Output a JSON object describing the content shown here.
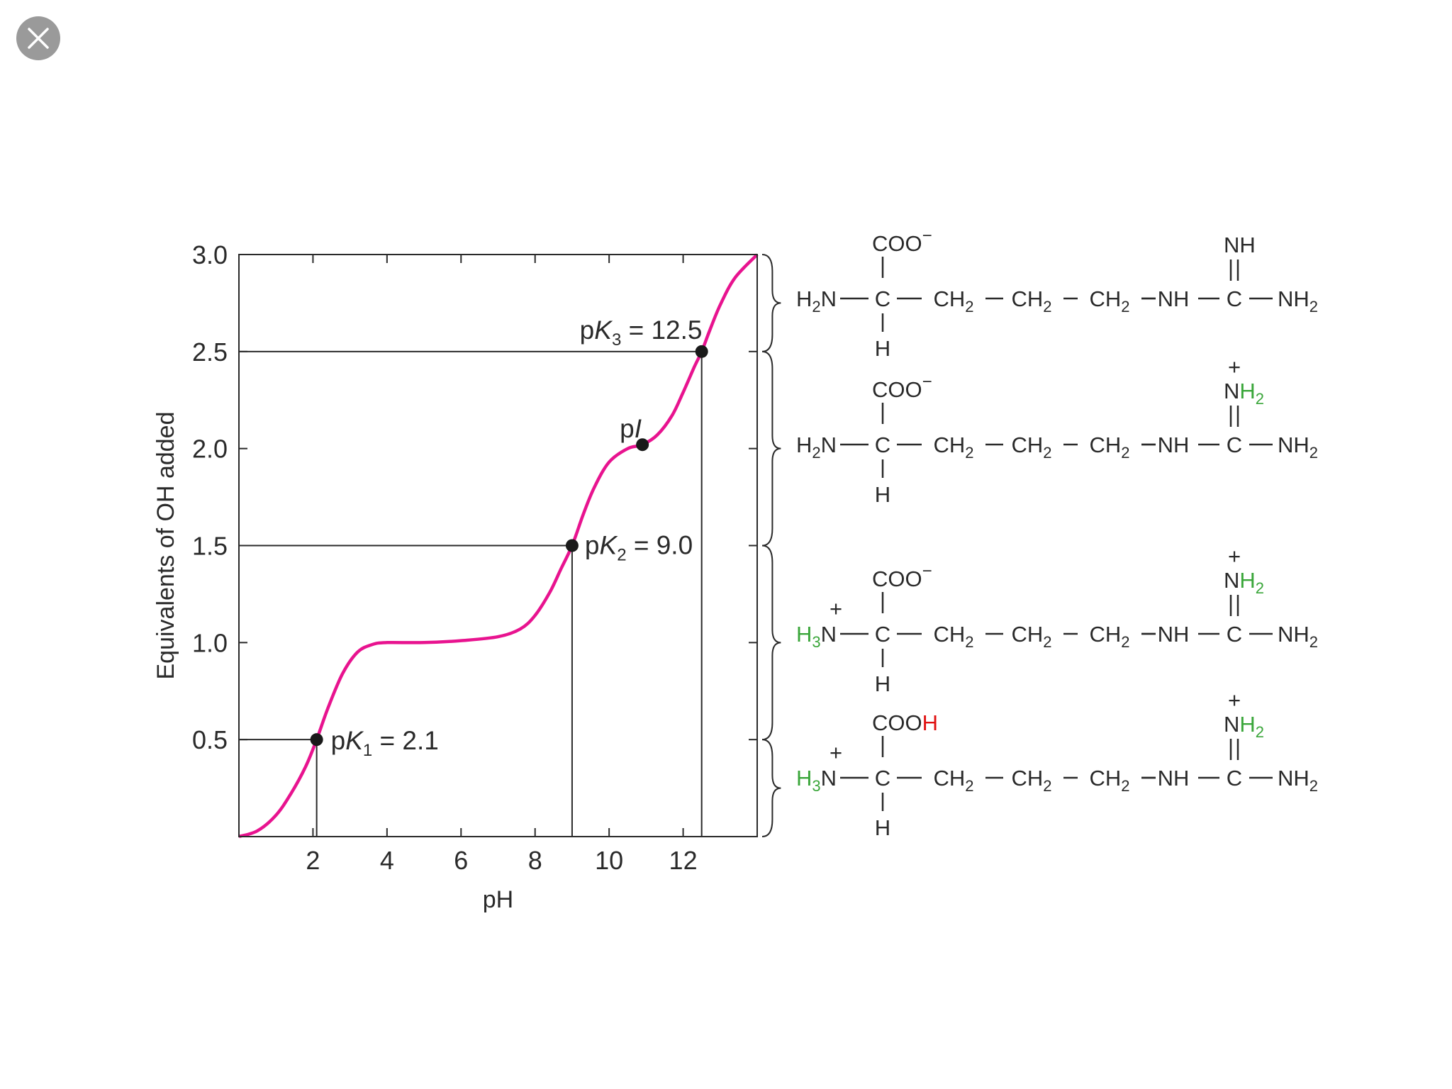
{
  "close_icon": "close-icon",
  "chart_data": {
    "type": "line",
    "title": "",
    "xlabel": "pH",
    "ylabel": "Equivalents of OH added",
    "xlim": [
      0,
      14
    ],
    "ylim": [
      0,
      3.0
    ],
    "x_ticks": [
      2,
      4,
      6,
      8,
      10,
      12
    ],
    "x_tick_labels": [
      "2",
      "4",
      "6",
      "8",
      "10",
      "12"
    ],
    "y_ticks": [
      0.5,
      1.0,
      1.5,
      2.0,
      2.5,
      3.0
    ],
    "y_tick_labels": [
      "0.5",
      "1.0",
      "1.5",
      "2.0",
      "2.5",
      "3.0"
    ],
    "grid": false,
    "line_color": "#e8138f",
    "series": [
      {
        "x": [
          0,
          0.5,
          1.0,
          1.4,
          1.8,
          2.1,
          2.4,
          2.8,
          3.2,
          3.6,
          4.0,
          5.0,
          6.0,
          7.0,
          7.6,
          8.0,
          8.4,
          8.7,
          9.0,
          9.3,
          9.6,
          10.0,
          10.5,
          10.9,
          11.3,
          11.7,
          12.0,
          12.3,
          12.5,
          12.7,
          13.0,
          13.4,
          14.0
        ],
        "y": [
          0,
          0.03,
          0.11,
          0.22,
          0.36,
          0.5,
          0.66,
          0.84,
          0.95,
          0.99,
          1.0,
          1.0,
          1.01,
          1.03,
          1.07,
          1.14,
          1.26,
          1.38,
          1.5,
          1.66,
          1.8,
          1.93,
          2.0,
          2.02,
          2.07,
          2.17,
          2.29,
          2.42,
          2.5,
          2.6,
          2.74,
          2.88,
          3.0
        ]
      }
    ],
    "points": [
      {
        "x": 2.1,
        "y": 0.5,
        "label": "pK1 = 2.1",
        "marker": "filled"
      },
      {
        "x": 9.0,
        "y": 1.5,
        "label": "pK2 = 9.0",
        "marker": "filled"
      },
      {
        "x": 10.9,
        "y": 2.02,
        "label": "pI",
        "marker": "filled"
      },
      {
        "x": 12.5,
        "y": 2.5,
        "label": "pK3 = 12.5",
        "marker": "filled"
      }
    ],
    "annotations": {
      "pk1": {
        "p": "p",
        "K": "K",
        "sub": "1",
        "rest": " = 2.1"
      },
      "pk2": {
        "p": "p",
        "K": "K",
        "sub": "2",
        "rest": " = 9.0"
      },
      "pk3": {
        "p": "p",
        "K": "K",
        "sub": "3",
        "rest": " = 12.5"
      },
      "pi": {
        "p": "p",
        "I": "I"
      }
    },
    "guide_lines": [
      {
        "x": 2.1,
        "y": 0.5
      },
      {
        "x": 9.0,
        "y": 1.5
      },
      {
        "x": 12.5,
        "y": 2.5
      }
    ]
  },
  "structures": {
    "green": "#3aa63a",
    "red": "#e01010",
    "items": [
      {
        "alpha_n": "H2N",
        "alpha_charge": "",
        "carboxyl": "COO",
        "carboxyl_h": "",
        "carboxyl_charge": "−",
        "guan_top": "NH",
        "guan_top_h": "",
        "guan_charge": "",
        "chain": [
          "CH2",
          "CH2",
          "CH2",
          "NH"
        ],
        "terminal": "NH2",
        "h": "H",
        "c": "C"
      },
      {
        "alpha_n": "H2N",
        "alpha_charge": "",
        "carboxyl": "COO",
        "carboxyl_h": "",
        "carboxyl_charge": "−",
        "guan_top": "N",
        "guan_top_h": "H2",
        "guan_charge": "+",
        "chain": [
          "CH2",
          "CH2",
          "CH2",
          "NH"
        ],
        "terminal": "NH2",
        "h": "H",
        "c": "C"
      },
      {
        "alpha_n": "H3N",
        "alpha_charge": "+",
        "carboxyl": "COO",
        "carboxyl_h": "",
        "carboxyl_charge": "−",
        "guan_top": "N",
        "guan_top_h": "H2",
        "guan_charge": "+",
        "chain": [
          "CH2",
          "CH2",
          "CH2",
          "NH"
        ],
        "terminal": "NH2",
        "h": "H",
        "c": "C"
      },
      {
        "alpha_n": "H3N",
        "alpha_charge": "+",
        "carboxyl": "COO",
        "carboxyl_h": "H",
        "carboxyl_charge": "",
        "guan_top": "N",
        "guan_top_h": "H2",
        "guan_charge": "+",
        "chain": [
          "CH2",
          "CH2",
          "CH2",
          "NH"
        ],
        "terminal": "NH2",
        "h": "H",
        "c": "C"
      }
    ]
  }
}
